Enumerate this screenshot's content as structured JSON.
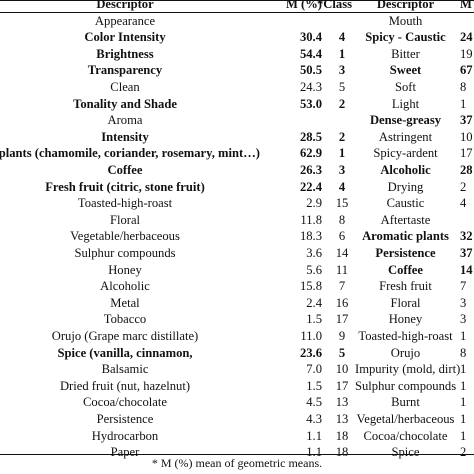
{
  "headers": {
    "descriptor_left": "Descriptor",
    "mean_left": "M (%)",
    "class_left": "*Class",
    "descriptor_right": "Descriptor",
    "mean_right": "M ("
  },
  "left_rows": [
    {
      "d": "Appearance",
      "m": "",
      "c": "",
      "bold": false
    },
    {
      "d": "Color Intensity",
      "m": "30.4",
      "c": "4",
      "bold": true
    },
    {
      "d": "Brightness",
      "m": "54.4",
      "c": "1",
      "bold": true
    },
    {
      "d": "Transparency",
      "m": "50.5",
      "c": "3",
      "bold": true
    },
    {
      "d": "Clean",
      "m": "24.3",
      "c": "5",
      "bold": false
    },
    {
      "d": "Tonality and Shade",
      "m": "53.0",
      "c": "2",
      "bold": true
    },
    {
      "d": "Aroma",
      "m": "",
      "c": "",
      "bold": false
    },
    {
      "d": "Intensity",
      "m": "28.5",
      "c": "2",
      "bold": true
    },
    {
      "d": "c plants (chamomile, coriander, rosemary, mint…)",
      "m": "62.9",
      "c": "1",
      "bold": true
    },
    {
      "d": "Coffee",
      "m": "26.3",
      "c": "3",
      "bold": true
    },
    {
      "d": "Fresh fruit (citric, stone fruit)",
      "m": "22.4",
      "c": "4",
      "bold": true
    },
    {
      "d": "Toasted-high-roast",
      "m": "2.9",
      "c": "15",
      "bold": false
    },
    {
      "d": "Floral",
      "m": "11.8",
      "c": "8",
      "bold": false
    },
    {
      "d": "Vegetable/herbaceous",
      "m": "18.3",
      "c": "6",
      "bold": false
    },
    {
      "d": "Sulphur compounds",
      "m": "3.6",
      "c": "14",
      "bold": false
    },
    {
      "d": "Honey",
      "m": "5.6",
      "c": "11",
      "bold": false
    },
    {
      "d": "Alcoholic",
      "m": "15.8",
      "c": "7",
      "bold": false
    },
    {
      "d": "Metal",
      "m": "2.4",
      "c": "16",
      "bold": false
    },
    {
      "d": "Tobacco",
      "m": "1.5",
      "c": "17",
      "bold": false
    },
    {
      "d": "Orujo (Grape marc distillate)",
      "m": "11.0",
      "c": "9",
      "bold": false
    },
    {
      "d": "Spice (vanilla, cinnamon,",
      "m": "23.6",
      "c": "5",
      "bold": true
    },
    {
      "d": "Balsamic",
      "m": "7.0",
      "c": "10",
      "bold": false
    },
    {
      "d": "Dried fruit (nut, hazelnut)",
      "m": "1.5",
      "c": "17",
      "bold": false
    },
    {
      "d": "Cocoa/chocolate",
      "m": "4.5",
      "c": "13",
      "bold": false
    },
    {
      "d": "Persistence",
      "m": "4.3",
      "c": "13",
      "bold": false
    },
    {
      "d": "Hydrocarbon",
      "m": "1.1",
      "c": "18",
      "bold": false
    },
    {
      "d": "Paper",
      "m": "1.1",
      "c": "18",
      "bold": false
    }
  ],
  "right_rows": [
    {
      "d": "Mouth",
      "m": "",
      "bold": false
    },
    {
      "d": "Spicy - Caustic",
      "m": "24",
      "bold": true
    },
    {
      "d": "Bitter",
      "m": "19",
      "bold": false
    },
    {
      "d": "Sweet",
      "m": "67",
      "bold": true
    },
    {
      "d": "Soft",
      "m": "8",
      "bold": false
    },
    {
      "d": "Light",
      "m": "1",
      "bold": false
    },
    {
      "d": "Dense-greasy",
      "m": "37",
      "bold": true
    },
    {
      "d": "Astringent",
      "m": "10",
      "bold": false
    },
    {
      "d": "Spicy-ardent",
      "m": "17",
      "bold": false
    },
    {
      "d": "Alcoholic",
      "m": "28",
      "bold": true
    },
    {
      "d": "Drying",
      "m": "2",
      "bold": false
    },
    {
      "d": "Caustic",
      "m": "4",
      "bold": false
    },
    {
      "d": "Aftertaste",
      "m": "",
      "bold": false
    },
    {
      "d": "Aromatic plants",
      "m": "32",
      "bold": true
    },
    {
      "d": "Persistence",
      "m": "37",
      "bold": true
    },
    {
      "d": "Coffee",
      "m": "14",
      "bold": true
    },
    {
      "d": "Fresh fruit",
      "m": "7",
      "bold": false
    },
    {
      "d": "Floral",
      "m": "3",
      "bold": false
    },
    {
      "d": "Honey",
      "m": "3",
      "bold": false
    },
    {
      "d": "Toasted-high-roast",
      "m": "1",
      "bold": false
    },
    {
      "d": "Orujo",
      "m": "8",
      "bold": false
    },
    {
      "d": "Impurity (mold, dirt)",
      "m": "1",
      "bold": false
    },
    {
      "d": "Sulphur compounds",
      "m": "1",
      "bold": false
    },
    {
      "d": "Burnt",
      "m": "1",
      "bold": false
    },
    {
      "d": "Vegetal/herbaceous",
      "m": "1",
      "bold": false
    },
    {
      "d": "Cocoa/chocolate",
      "m": "1",
      "bold": false
    },
    {
      "d": "Spice",
      "m": "2",
      "bold": false
    }
  ],
  "footnote": "* M (%) mean of geometric means."
}
